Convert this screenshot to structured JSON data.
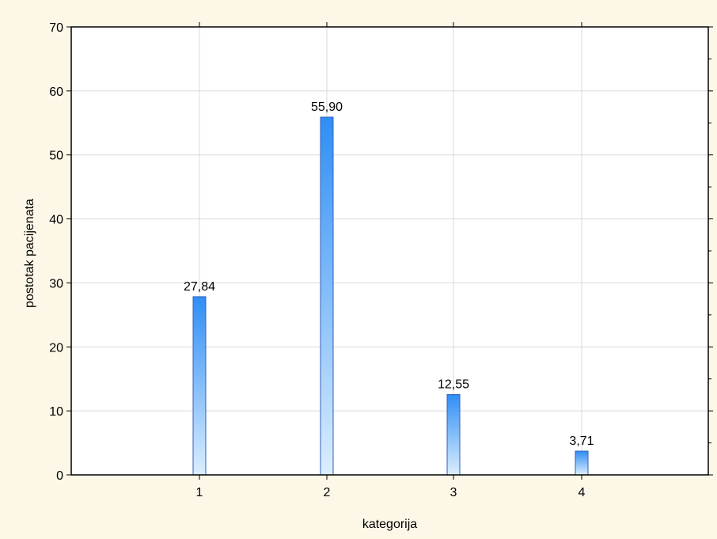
{
  "chart_data": {
    "type": "bar",
    "categories": [
      "1",
      "2",
      "3",
      "4"
    ],
    "values": [
      27.84,
      55.9,
      12.55,
      3.71
    ],
    "data_labels": [
      "27,84",
      "55,90",
      "12,55",
      "3,71"
    ],
    "xlabel": "kategorija",
    "ylabel": "postotak pacijenata",
    "ylim": [
      0,
      70
    ],
    "yticks": [
      0,
      10,
      20,
      30,
      40,
      50,
      60,
      70
    ],
    "grid": true,
    "colors": {
      "background": "#fdf7e8",
      "plot_area": "#ffffff",
      "grid": "#d9d9d9",
      "bar_top": "#2f8ef5",
      "bar_bottom": "#dbeeff",
      "bar_edge": "#3060b8"
    }
  }
}
